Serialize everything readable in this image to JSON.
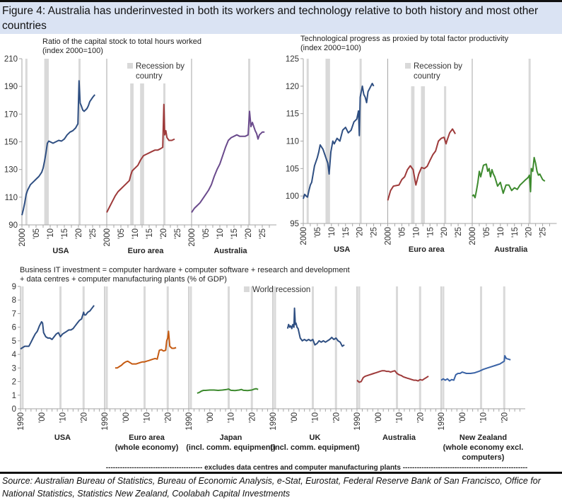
{
  "figure": {
    "title": "Figure 4: Australia has underinvested in both its workers and technology relative to both history and most other countries",
    "source": "Source: Australian Bureau of Statistics, Bureau of Economic Analysis, e-Stat, Eurostat, Federal Reserve Bank of San Francisco, Office for National Statistics, Statistics New Zealand, Coolabah Capital Investments",
    "footnote": "----------------------------------------- excludes data centres and computer manufacturing plants -----------------------------------------------------"
  },
  "chart_data": [
    {
      "type": "line",
      "title": "Ratio of the capital stock to total hours worked",
      "subtitle": "(index 2000=100)",
      "ylim": [
        90,
        210
      ],
      "yticks": [
        90,
        110,
        130,
        150,
        170,
        190,
        210
      ],
      "xticks": [
        "2000",
        "'05",
        "'10",
        "'15",
        "'20",
        "'25"
      ],
      "xrange": [
        2000,
        2030
      ],
      "legend": {
        "label": "Recession by country",
        "placement": "top-center"
      },
      "panels": [
        {
          "name": "USA",
          "color": "#2f4f82",
          "recessions": [
            [
              2001.2,
              2001.9
            ],
            [
              2007.9,
              2009.5
            ],
            [
              2020.0,
              2020.5
            ]
          ],
          "x": [
            2000,
            2000.5,
            2001,
            2001.5,
            2002,
            2003,
            2004,
            2005,
            2006,
            2007,
            2007.5,
            2008,
            2008.5,
            2009,
            2009.5,
            2010,
            2011,
            2012,
            2013,
            2014,
            2015,
            2016,
            2017,
            2018,
            2019,
            2019.8,
            2020.2,
            2020.6,
            2021,
            2021.5,
            2022,
            2022.5,
            2023,
            2023.5,
            2024,
            2025,
            2025.8
          ],
          "y": [
            97,
            101,
            106,
            112,
            115,
            119,
            121,
            123,
            125,
            128,
            131,
            136,
            142,
            149,
            150.5,
            150,
            149,
            150,
            151,
            150.5,
            152,
            155,
            157,
            158,
            160,
            163,
            194,
            178,
            176,
            173,
            172,
            173,
            174,
            176,
            179,
            182,
            184
          ]
        },
        {
          "name": "Euro area",
          "color": "#9e3a3a",
          "recessions": [
            [
              2008.3,
              2009.5
            ],
            [
              2011.8,
              2013.2
            ],
            [
              2020.0,
              2020.5
            ]
          ],
          "x": [
            2000,
            2001,
            2002,
            2003,
            2004,
            2005,
            2006,
            2007,
            2008,
            2008.5,
            2009,
            2010,
            2011,
            2012,
            2013,
            2014,
            2015,
            2016,
            2017,
            2018,
            2019,
            2019.8,
            2020.2,
            2020.5,
            2020.9,
            2021.3,
            2022,
            2023,
            2024
          ],
          "y": [
            99,
            103,
            107,
            111,
            114,
            116,
            118,
            120,
            122,
            126,
            129,
            131,
            133,
            137,
            140,
            141,
            142,
            143,
            144,
            144,
            145,
            146,
            177,
            155,
            158,
            153,
            151,
            151,
            152
          ]
        },
        {
          "name": "Australia",
          "color": "#6a4a8c",
          "recessions": [
            [
              2020.0,
              2020.5
            ]
          ],
          "x": [
            2000,
            2001,
            2002,
            2003,
            2004,
            2005,
            2006,
            2007,
            2008,
            2009,
            2010,
            2011,
            2012,
            2013,
            2014,
            2015,
            2016,
            2017,
            2018,
            2019,
            2020,
            2020.5,
            2021,
            2021.5,
            2022,
            2022.5,
            2023,
            2023.5,
            2024,
            2025,
            2025.8
          ],
          "y": [
            99,
            102,
            104,
            106,
            109,
            112,
            115,
            119,
            125,
            130,
            134,
            140,
            146,
            151,
            153,
            154,
            155,
            154,
            154,
            154,
            155,
            172,
            161,
            164,
            161,
            158,
            156,
            152,
            155,
            157,
            157
          ]
        }
      ]
    },
    {
      "type": "line",
      "title": "Technological progress as proxied by total factor productivity",
      "subtitle": "(index 2000=100)",
      "ylim": [
        95,
        125
      ],
      "yticks": [
        95,
        100,
        105,
        110,
        115,
        120,
        125
      ],
      "xticks": [
        "2000",
        "'05",
        "'10",
        "'15",
        "'20",
        "'25"
      ],
      "xrange": [
        2000,
        2030
      ],
      "legend": {
        "label": "Recession by country",
        "placement": "top-center"
      },
      "panels": [
        {
          "name": "USA",
          "color": "#2f4f82",
          "recessions": [
            [
              2001.2,
              2001.9
            ],
            [
              2007.9,
              2009.5
            ],
            [
              2020.0,
              2020.5
            ]
          ],
          "x": [
            2000,
            2000.5,
            2001,
            2001.5,
            2002,
            2002.5,
            2003,
            2004,
            2005,
            2005.5,
            2006,
            2007,
            2008,
            2008.7,
            2009.2,
            2009.8,
            2010.5,
            2011,
            2012,
            2013,
            2014,
            2015,
            2016,
            2017,
            2018,
            2019,
            2019.6,
            2019.9,
            2020.2,
            2020.6,
            2021,
            2021.5,
            2022,
            2022.5,
            2023,
            2024,
            2024.5,
            2025
          ],
          "y": [
            99.5,
            100.3,
            100,
            99.8,
            101,
            102,
            102.5,
            105.5,
            107,
            108,
            109.3,
            108.5,
            107,
            106,
            104,
            108,
            110,
            109.5,
            110.5,
            110,
            112,
            112.5,
            111.5,
            112,
            113.5,
            114,
            115.5,
            111,
            118,
            119,
            120,
            118.5,
            118,
            117,
            119,
            120,
            120.5,
            120
          ]
        },
        {
          "name": "Euro area",
          "color": "#9e3a3a",
          "recessions": [
            [
              2008.3,
              2009.5
            ],
            [
              2011.8,
              2013.2
            ],
            [
              2020.0,
              2020.5
            ]
          ],
          "x": [
            2000,
            2001,
            2002,
            2003,
            2004,
            2005,
            2006,
            2007,
            2008,
            2009,
            2010,
            2010.5,
            2011,
            2012,
            2013,
            2014,
            2015,
            2016,
            2017,
            2018,
            2019,
            2020,
            2020.7,
            2021,
            2022,
            2023,
            2024
          ],
          "y": [
            99.2,
            101,
            101.8,
            101.9,
            102,
            103,
            103.5,
            104.8,
            105.5,
            104.8,
            102,
            103,
            104,
            105.2,
            105,
            105.4,
            106.5,
            107.5,
            108.2,
            110,
            110.5,
            110.7,
            109.5,
            110,
            111.5,
            112.2,
            111.3
          ]
        },
        {
          "name": "Australia",
          "color": "#3d8a2e",
          "recessions": [
            [
              2020.0,
              2020.5
            ]
          ],
          "x": [
            2000,
            2000.5,
            2001,
            2001.5,
            2002,
            2002.5,
            2003,
            2004,
            2005,
            2005.5,
            2006,
            2006.5,
            2007,
            2007.5,
            2008,
            2009,
            2010,
            2010.5,
            2011,
            2012,
            2013,
            2014,
            2015,
            2016,
            2017,
            2018,
            2019,
            2019.5,
            2020,
            2020.3,
            2020.7,
            2021,
            2021.5,
            2022,
            2022.5,
            2023,
            2023.5,
            2024,
            2025,
            2025.8
          ],
          "y": [
            100,
            100.2,
            99.7,
            101,
            102.5,
            104.5,
            103.5,
            105.6,
            105.8,
            104.5,
            105,
            103.5,
            104.8,
            104,
            103.5,
            101.8,
            102.5,
            101.5,
            100.5,
            102,
            102,
            101,
            101.5,
            101.2,
            102,
            102.5,
            103,
            103.2,
            103.5,
            103.8,
            100.8,
            105,
            104.5,
            107,
            106,
            104.5,
            103.8,
            104,
            103,
            102.7
          ]
        }
      ]
    },
    {
      "type": "line",
      "title": "Business IT investment = computer hardware + computer software + research and development",
      "subtitle": "+ data centres + computer manufacturing plants (% of GDP)",
      "ylim": [
        0,
        9
      ],
      "yticks": [
        0,
        1,
        2,
        3,
        4,
        5,
        6,
        7,
        8,
        9
      ],
      "xticks": [
        "1990",
        "'00",
        "'10",
        "'20"
      ],
      "xrange": [
        1990,
        2030
      ],
      "legend": {
        "label": "World recession",
        "placement": "top-center"
      },
      "recessions": [
        1991,
        2009,
        2020
      ],
      "panels": [
        {
          "name": "USA",
          "sub": "",
          "color": "#2f4f82",
          "x": [
            1990,
            1991,
            1992,
            1993,
            1994,
            1995,
            1996,
            1997,
            1998,
            1999,
            2000,
            2000.5,
            2001,
            2002,
            2003,
            2004,
            2005,
            2006,
            2007,
            2008,
            2009,
            2010,
            2011,
            2012,
            2013,
            2014,
            2015,
            2016,
            2017,
            2018,
            2019,
            2020,
            2020.4,
            2021,
            2022,
            2023,
            2024,
            2025
          ],
          "y": [
            4.4,
            4.5,
            4.6,
            4.6,
            4.6,
            4.9,
            5.2,
            5.5,
            5.7,
            6.1,
            6.4,
            6.3,
            5.6,
            5.3,
            5.2,
            5.2,
            5.1,
            5.3,
            5.5,
            5.6,
            5.3,
            5.5,
            5.6,
            5.7,
            5.8,
            5.8,
            5.9,
            6.1,
            6.3,
            6.5,
            6.6,
            7.1,
            6.9,
            6.9,
            7.1,
            7.2,
            7.4,
            7.6
          ]
        },
        {
          "name": "Euro area",
          "sub": "(whole economy)",
          "color": "#c55a11",
          "x": [
            1995,
            1996,
            1997,
            1998,
            1999,
            2000,
            2001,
            2002,
            2003,
            2004,
            2005,
            2006,
            2007,
            2008,
            2009,
            2010,
            2011,
            2012,
            2013,
            2014,
            2015,
            2016,
            2017,
            2018,
            2019,
            2019.5,
            2020,
            2020.4,
            2021,
            2022,
            2023,
            2024
          ],
          "y": [
            3.0,
            3.0,
            3.1,
            3.2,
            3.35,
            3.45,
            3.5,
            3.4,
            3.3,
            3.3,
            3.3,
            3.35,
            3.4,
            3.45,
            3.45,
            3.5,
            3.55,
            3.6,
            3.65,
            3.7,
            3.65,
            4.3,
            4.35,
            4.25,
            4.3,
            5.0,
            5.2,
            5.7,
            4.6,
            4.45,
            4.45,
            4.5
          ]
        },
        {
          "name": "Japan",
          "sub": "(incl. comm. equipment)",
          "color": "#3d8a2e",
          "x": [
            1994,
            1995,
            1996,
            1997,
            1998,
            2000,
            2002,
            2004,
            2006,
            2008,
            2009,
            2010,
            2012,
            2014,
            2015,
            2016,
            2018,
            2020,
            2021,
            2022,
            2023
          ],
          "y": [
            1.15,
            1.2,
            1.3,
            1.35,
            1.35,
            1.38,
            1.38,
            1.35,
            1.38,
            1.42,
            1.45,
            1.36,
            1.34,
            1.38,
            1.42,
            1.36,
            1.34,
            1.38,
            1.44,
            1.48,
            1.42
          ]
        },
        {
          "name": "UK",
          "sub": "(incl. comm. equipment)",
          "color": "#2f4f82",
          "x": [
            1997,
            1997.5,
            1998,
            1998.5,
            1999,
            1999.5,
            2000,
            2000.3,
            2000.7,
            2001,
            2001.5,
            2002,
            2003,
            2004,
            2005,
            2006,
            2007,
            2008,
            2009,
            2010,
            2011,
            2012,
            2013,
            2014,
            2015,
            2016,
            2017,
            2018,
            2019,
            2020,
            2021,
            2022,
            2023,
            2024
          ],
          "y": [
            5.9,
            6.2,
            6.0,
            6.1,
            5.9,
            6.2,
            6.0,
            7.4,
            6.2,
            6.3,
            6.0,
            5.9,
            5.2,
            5.0,
            5.1,
            5.0,
            5.1,
            5.0,
            5.1,
            4.7,
            4.8,
            5.0,
            4.9,
            5.0,
            4.9,
            5.0,
            5.1,
            5.25,
            5.1,
            5.2,
            5.0,
            4.9,
            4.6,
            4.7
          ]
        },
        {
          "name": "Australia",
          "sub": "",
          "color": "#9e3a3a",
          "x": [
            1990,
            1991,
            1992,
            1993,
            1994,
            1995,
            1996,
            1997,
            1998,
            1999,
            2000,
            2001,
            2002,
            2003,
            2004,
            2005,
            2006,
            2007,
            2008,
            2009,
            2010,
            2011,
            2012,
            2013,
            2014,
            2015,
            2016,
            2017,
            2018,
            2019,
            2020,
            2021,
            2022,
            2023,
            2024
          ],
          "y": [
            2.1,
            1.95,
            2.0,
            2.3,
            2.4,
            2.45,
            2.5,
            2.55,
            2.6,
            2.65,
            2.7,
            2.75,
            2.8,
            2.8,
            2.75,
            2.75,
            2.7,
            2.75,
            2.8,
            2.6,
            2.5,
            2.45,
            2.35,
            2.3,
            2.25,
            2.2,
            2.15,
            2.1,
            2.1,
            2.05,
            2.15,
            2.1,
            2.2,
            2.3,
            2.4
          ]
        },
        {
          "name": "New Zealand",
          "sub": "(whole economy excl. computers)",
          "color": "#3a63a6",
          "x": [
            1990,
            1991,
            1992,
            1993,
            1994,
            1995,
            1996,
            1997,
            1998,
            1999,
            2000,
            2002,
            2004,
            2006,
            2008,
            2010,
            2012,
            2014,
            2016,
            2018,
            2019,
            2020,
            2020.3,
            2021,
            2022,
            2023
          ],
          "y": [
            2.1,
            2.2,
            2.1,
            2.2,
            2.05,
            2.15,
            2.1,
            2.5,
            2.6,
            2.6,
            2.7,
            2.6,
            2.6,
            2.65,
            2.75,
            2.9,
            3.0,
            3.1,
            3.2,
            3.3,
            3.4,
            3.5,
            3.9,
            3.7,
            3.65,
            3.6
          ]
        }
      ]
    }
  ]
}
